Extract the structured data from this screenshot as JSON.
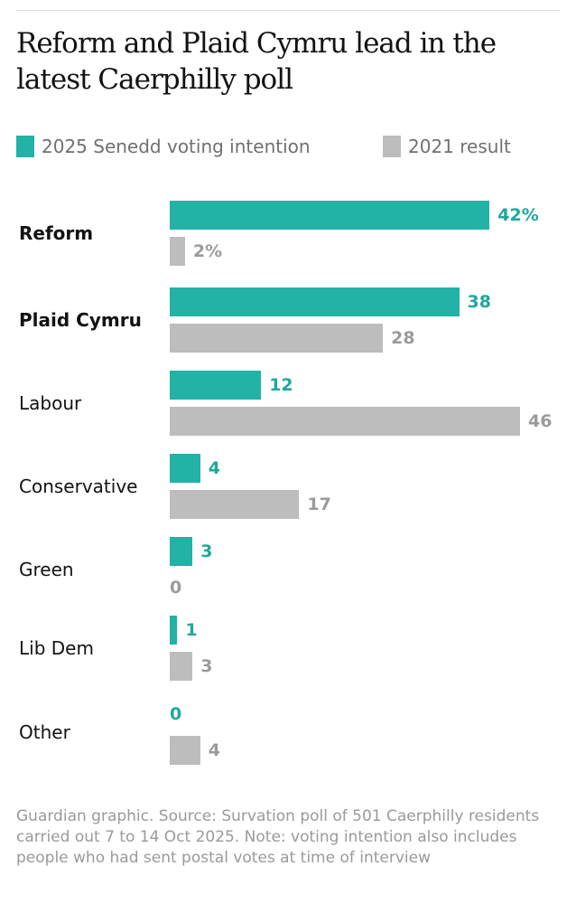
{
  "title": "Reform and Plaid Cymru lead in the latest Caerphilly poll",
  "colors": {
    "series2025": "#22b2a6",
    "series2021": "#bdbdbd",
    "label2025": "#1fa89b",
    "label2021": "#9b9b9b"
  },
  "chart_data": {
    "type": "bar",
    "orientation": "horizontal",
    "title": "Reform and Plaid Cymru lead in the latest Caerphilly poll",
    "categories": [
      "Reform",
      "Plaid Cymru",
      "Labour",
      "Conservative",
      "Green",
      "Lib Dem",
      "Other"
    ],
    "highlighted": [
      "Reform",
      "Plaid Cymru"
    ],
    "series": [
      {
        "name": "2025 Senedd voting intention",
        "values": [
          42,
          38,
          12,
          4,
          3,
          1,
          0
        ],
        "labels": [
          "42%",
          "38",
          "12",
          "4",
          "3",
          "1",
          "0"
        ]
      },
      {
        "name": "2021 result",
        "values": [
          2,
          28,
          46,
          17,
          0,
          3,
          4
        ],
        "labels": [
          "2%",
          "28",
          "46",
          "17",
          "0",
          "3",
          "4"
        ]
      }
    ],
    "xlim": [
      0,
      46
    ],
    "xlabel": "",
    "ylabel": "",
    "grid": false,
    "legend": "top-left"
  },
  "note": "Guardian graphic. Source: Survation poll of 501 Caerphilly residents carried out 7 to 14 Oct 2025. Note: voting intention also includes people who had sent postal votes at time of interview"
}
